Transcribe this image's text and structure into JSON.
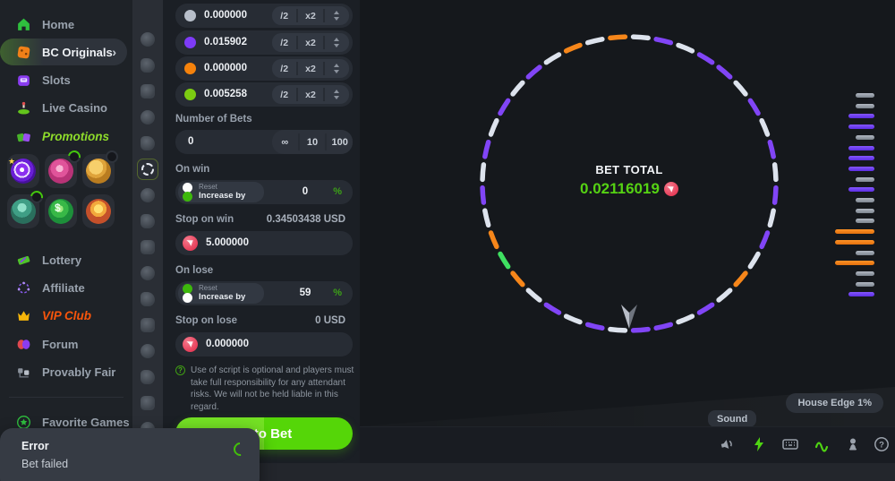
{
  "sidebar": {
    "items": [
      {
        "label": "Home",
        "icon": "home-icon"
      },
      {
        "label": "BC Originals",
        "icon": "dice-icon"
      },
      {
        "label": "Slots",
        "icon": "slots-icon"
      },
      {
        "label": "Live Casino",
        "icon": "live-casino-icon"
      },
      {
        "label": "Promotions",
        "icon": "promotions-bags-icon"
      },
      {
        "label": "Lottery",
        "icon": "lottery-ticket-icon"
      },
      {
        "label": "Affiliate",
        "icon": "affiliate-network-icon"
      },
      {
        "label": "VIP Club",
        "icon": "crown-icon"
      },
      {
        "label": "Forum",
        "icon": "forum-chat-icon"
      },
      {
        "label": "Provably Fair",
        "icon": "provably-fair-icon"
      },
      {
        "label": "Favorite Games",
        "icon": "star-icon"
      }
    ],
    "promo_tiles": [
      {
        "icon": "promo-spiral-target-icon",
        "badge": "none"
      },
      {
        "icon": "promo-prize-wheel-icon",
        "badge": "spinner"
      },
      {
        "icon": "promo-piggy-bank-icon",
        "badge": "plain"
      },
      {
        "icon": "promo-rocket-icon",
        "badge": "spinner"
      },
      {
        "icon": "promo-price-tag-icon",
        "badge": "none"
      },
      {
        "icon": "promo-gold-coin-icon",
        "badge": "none"
      }
    ]
  },
  "rail": {
    "count": 16,
    "active_index": 5,
    "active_game_icon": "wheel-game-icon"
  },
  "bet_panel": {
    "bet_rows": [
      {
        "color": "#b8bfca",
        "value": "0.000000"
      },
      {
        "color": "#7e3bf7",
        "value": "0.015902"
      },
      {
        "color": "#f5820c",
        "value": "0.000000"
      },
      {
        "color": "#7ccc12",
        "value": "0.005258"
      }
    ],
    "half_label": "/2",
    "double_label": "x2",
    "number_of_bets": {
      "label": "Number of Bets",
      "value": "0",
      "presets": [
        "∞",
        "10",
        "100"
      ]
    },
    "on_win": {
      "label": "On win",
      "reset_label": "Reset",
      "increase_label": "Increase by",
      "value": "0",
      "unit": "%",
      "mode": "reset"
    },
    "stop_on_win": {
      "label": "Stop on win",
      "hint": "0.34503438 USD",
      "value": "5.000000",
      "coin": "trx-coin-icon"
    },
    "on_lose": {
      "label": "On lose",
      "reset_label": "Reset",
      "increase_label": "Increase by",
      "value": "59",
      "unit": "%",
      "mode": "increase"
    },
    "stop_on_lose": {
      "label": "Stop on lose",
      "hint": "0 USD",
      "value": "0.000000",
      "coin": "trx-coin-icon"
    },
    "disclaimer": "Use of script is optional and players must take full responsibility for any attendant risks. We will not be held liable in this regard.",
    "auto_bet_label": "Auto Bet"
  },
  "game": {
    "bet_total_label": "BET TOTAL",
    "bet_total_value": "0.02116019",
    "bet_total_coin": "trx-coin-icon",
    "house_edge_label": "House Edge 1%",
    "sound_tooltip": "Sound",
    "wheel": {
      "palette": {
        "white": "#dde3ed",
        "purple": "#8145f6",
        "orange": "#f6861a",
        "green": "#3fe061"
      },
      "segments": [
        "white",
        "purple",
        "white",
        "purple",
        "purple",
        "white",
        "purple",
        "white",
        "purple",
        "white",
        "purple",
        "white",
        "purple",
        "white",
        "orange",
        "white",
        "purple",
        "white",
        "purple",
        "purple",
        "white",
        "purple",
        "white",
        "purple",
        "white",
        "orange",
        "green",
        "orange",
        "white",
        "purple",
        "white",
        "purple",
        "white",
        "purple",
        "white",
        "purple",
        "white",
        "orange",
        "white",
        "orange"
      ]
    },
    "history_bars": [
      "gray",
      "gray",
      "purple",
      "purple",
      "gray",
      "purple",
      "purple",
      "purple",
      "gray",
      "purple",
      "gray",
      "gray",
      "gray",
      "orange",
      "orange",
      "gray",
      "orange",
      "gray",
      "gray",
      "purple"
    ],
    "footer_icons": [
      "sound-speaker-icon",
      "turbo-lightning-icon",
      "hotkeys-keyboard-icon",
      "trends-wave-icon",
      "strategy-pawn-icon",
      "help-question-icon"
    ]
  },
  "toast": {
    "title": "Error",
    "message": "Bet failed"
  },
  "colors": {
    "accent_green": "#55d608",
    "accent_purple": "#8145f6",
    "accent_orange": "#f6861a",
    "coin_pink": "#e63b57",
    "value_green": "#55d213"
  }
}
